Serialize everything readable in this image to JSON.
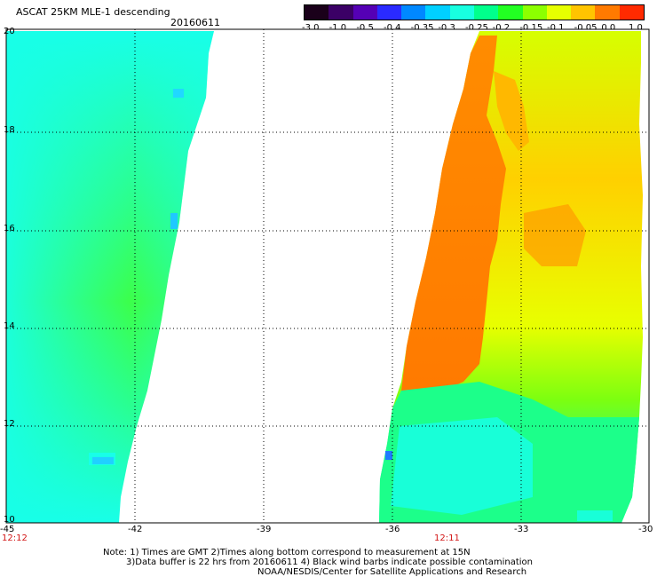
{
  "header": {
    "title": "ASCAT 25KM MLE-1 descending",
    "date": "20160611"
  },
  "colorbar": {
    "labels": [
      "-3.0",
      "-1.0",
      "-0.5",
      "-0.4",
      "-0.35",
      "-0.3",
      "-0.25",
      "-0.2",
      "-0.15",
      "-0.1",
      "-0.05",
      "0.0",
      "1.0"
    ],
    "colors": [
      "#1a001a",
      "#3b0066",
      "#5500b5",
      "#2a2aff",
      "#0088ff",
      "#00d0ff",
      "#18ffe0",
      "#00ff8c",
      "#22ff22",
      "#8cff00",
      "#e6ff00",
      "#ffc400",
      "#ff7a00",
      "#ff2a00"
    ]
  },
  "axes": {
    "lon_labels": [
      "-45",
      "-42",
      "-39",
      "-36",
      "-33",
      "-30"
    ],
    "lat_labels": [
      "20",
      "18",
      "16",
      "14",
      "12",
      "10"
    ]
  },
  "time_labels": {
    "left": "12:12",
    "right": "12:11"
  },
  "notes": {
    "line1": "Note: 1) Times are GMT 2)Times along bottom correspond to measurement at 15N",
    "line2": "3)Data buffer is 22 hrs from 20160611 4) Black wind barbs indicate possible contamination",
    "line3": "NOAA/NESDIS/Center for Satellite Applications and Research"
  }
}
